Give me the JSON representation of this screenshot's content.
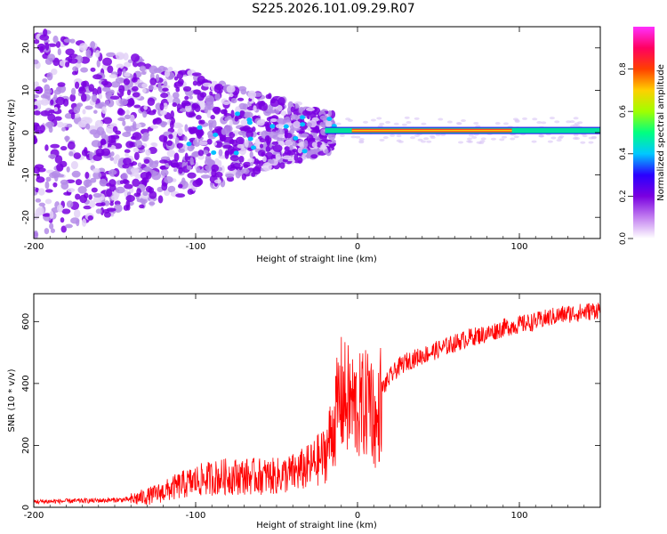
{
  "title": "S225.2026.101.09.29.R07",
  "chart_data": [
    {
      "type": "heatmap",
      "title": "",
      "xlabel": "Height of straight line (km)",
      "ylabel": "Frequency (Hz)",
      "xlim": [
        -200,
        150
      ],
      "ylim": [
        -25,
        25
      ],
      "xticks": [
        -200,
        -100,
        0,
        100
      ],
      "yticks": [
        -20,
        -10,
        0,
        10,
        20
      ],
      "colorbar": {
        "label": "Normalized spectral amplitude",
        "range": [
          0.0,
          1.0
        ],
        "ticks": [
          0.0,
          0.2,
          0.4,
          0.6,
          0.8
        ],
        "tick_labels": [
          "0.0",
          "0.2",
          "0.4",
          "0.6",
          "0.8"
        ],
        "colors": [
          "#ffffff",
          "#c27ff0",
          "#7a00e0",
          "#2a00ff",
          "#00c8ff",
          "#00ff80",
          "#a0ff00",
          "#ffd000",
          "#ff4000",
          "#ff0060",
          "#ff30ff"
        ]
      },
      "features": [
        {
          "name": "carrier line",
          "x_range": [
            -20,
            150
          ],
          "frequency": 0.5,
          "amplitude": 0.85
        },
        {
          "name": "scattered noise",
          "x_range": [
            -200,
            -20
          ],
          "frequency_spread": 25,
          "amplitude": 0.3
        }
      ]
    },
    {
      "type": "line",
      "title": "",
      "xlabel": "Height of straight line (km)",
      "ylabel": "SNR (10 * v/v)",
      "xlim": [
        -200,
        150
      ],
      "ylim": [
        0,
        690
      ],
      "xticks": [
        -200,
        -100,
        0,
        100
      ],
      "yticks": [
        0,
        200,
        400,
        600
      ],
      "color": "#ff0000",
      "series": [
        {
          "name": "SNR",
          "x": [
            -200,
            -180,
            -160,
            -140,
            -130,
            -120,
            -110,
            -100,
            -90,
            -80,
            -70,
            -60,
            -50,
            -40,
            -30,
            -25,
            -20,
            -15,
            -12,
            -10,
            -8,
            -5,
            0,
            5,
            8,
            10,
            12,
            15,
            20,
            25,
            30,
            40,
            50,
            60,
            70,
            80,
            90,
            100,
            110,
            120,
            130,
            140,
            150
          ],
          "values": [
            18,
            20,
            22,
            25,
            35,
            50,
            70,
            85,
            95,
            100,
            100,
            100,
            100,
            110,
            130,
            150,
            170,
            260,
            330,
            360,
            350,
            340,
            320,
            330,
            380,
            290,
            250,
            380,
            420,
            450,
            470,
            490,
            510,
            530,
            550,
            560,
            580,
            590,
            600,
            615,
            625,
            630,
            640
          ]
        }
      ]
    }
  ]
}
